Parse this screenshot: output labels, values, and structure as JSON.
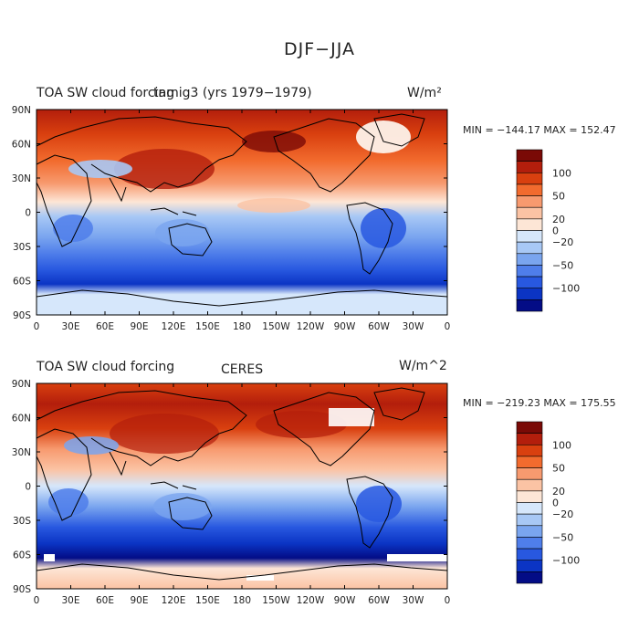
{
  "figure_title": "DJF−JJA",
  "panels": [
    {
      "title_left": "TOA SW cloud forcing",
      "title_center": "tamig3 (yrs 1979−1979)",
      "units": "W/m²",
      "minmax": "MIN = −144.17 MAX = 152.47"
    },
    {
      "title_left": "TOA SW cloud forcing",
      "title_center": "CERES",
      "units": "W/m^2",
      "minmax": "MIN = −219.23 MAX = 175.55"
    }
  ],
  "axes": {
    "lat_ticks": [
      "90N",
      "60N",
      "30N",
      "0",
      "30S",
      "60S",
      "90S"
    ],
    "lon_ticks": [
      "0",
      "30E",
      "60E",
      "90E",
      "120E",
      "150E",
      "180",
      "150W",
      "120W",
      "90W",
      "60W",
      "30W",
      "0"
    ]
  },
  "colorbar": {
    "labels": [
      "100",
      "50",
      "20",
      "0",
      "−20",
      "−50",
      "−100"
    ],
    "colors": [
      "#7a0a06",
      "#b31e0c",
      "#d9400f",
      "#f26b2e",
      "#f79a6f",
      "#fbc3a4",
      "#fde6d6",
      "#d6e7fb",
      "#a8c8f5",
      "#7aa5ef",
      "#4f7eea",
      "#2858e0",
      "#0b34c4",
      "#030c86"
    ]
  },
  "colors": {
    "land_outline": "#000000",
    "frame": "#000000"
  }
}
